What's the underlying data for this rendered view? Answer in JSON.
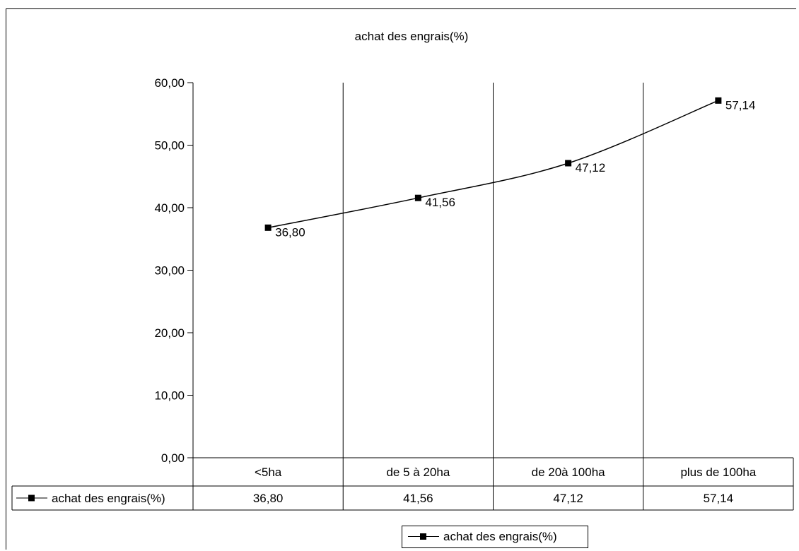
{
  "chart_data": {
    "type": "line",
    "title": "achat des engrais(%)",
    "categories": [
      "<5ha",
      "de 5 à 20ha",
      "de 20à 100ha",
      "plus de 100ha"
    ],
    "series": [
      {
        "name": "achat des engrais(%)",
        "values": [
          36.8,
          41.56,
          47.12,
          57.14
        ],
        "labels": [
          "36,80",
          "41,56",
          "47,12",
          "57,14"
        ],
        "color": "#000000",
        "marker": "square"
      }
    ],
    "ylim": [
      0,
      60
    ],
    "yticks": [
      0,
      10,
      20,
      30,
      40,
      50,
      60
    ],
    "ytick_labels": [
      "0,00",
      "10,00",
      "20,00",
      "30,00",
      "40,00",
      "50,00",
      "60,00"
    ],
    "xlabel": "",
    "ylabel": "",
    "grid": "vertical category separators",
    "legend": "bottom",
    "data_table": true
  }
}
